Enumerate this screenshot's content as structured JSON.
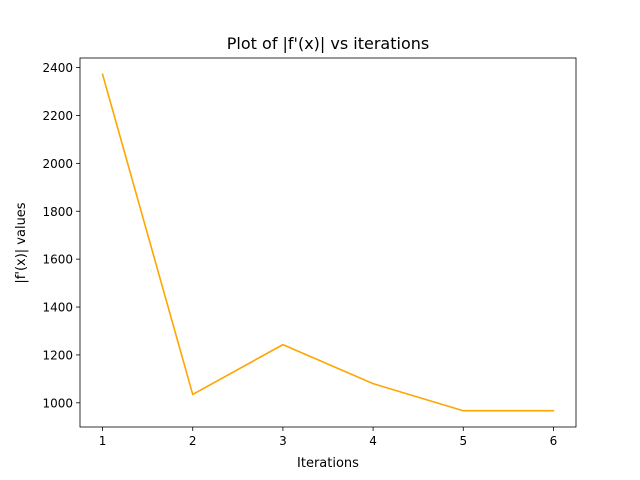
{
  "chart_data": {
    "type": "line",
    "title": "Plot of |f'(x)| vs iterations",
    "xlabel": "Iterations",
    "ylabel": "|f'(x)| values",
    "x": [
      1,
      2,
      3,
      4,
      5,
      6
    ],
    "series": [
      {
        "values": [
          2372,
          1035,
          1243,
          1080,
          967,
          967
        ],
        "color": "#ffa500"
      }
    ],
    "xlim": [
      0.75,
      6.25
    ],
    "ylim": [
      899,
      2440
    ],
    "xticks": [
      1,
      2,
      3,
      4,
      5,
      6
    ],
    "yticks": [
      1000,
      1200,
      1400,
      1600,
      1800,
      2000,
      2200,
      2400
    ],
    "grid": false,
    "legend": "none"
  }
}
